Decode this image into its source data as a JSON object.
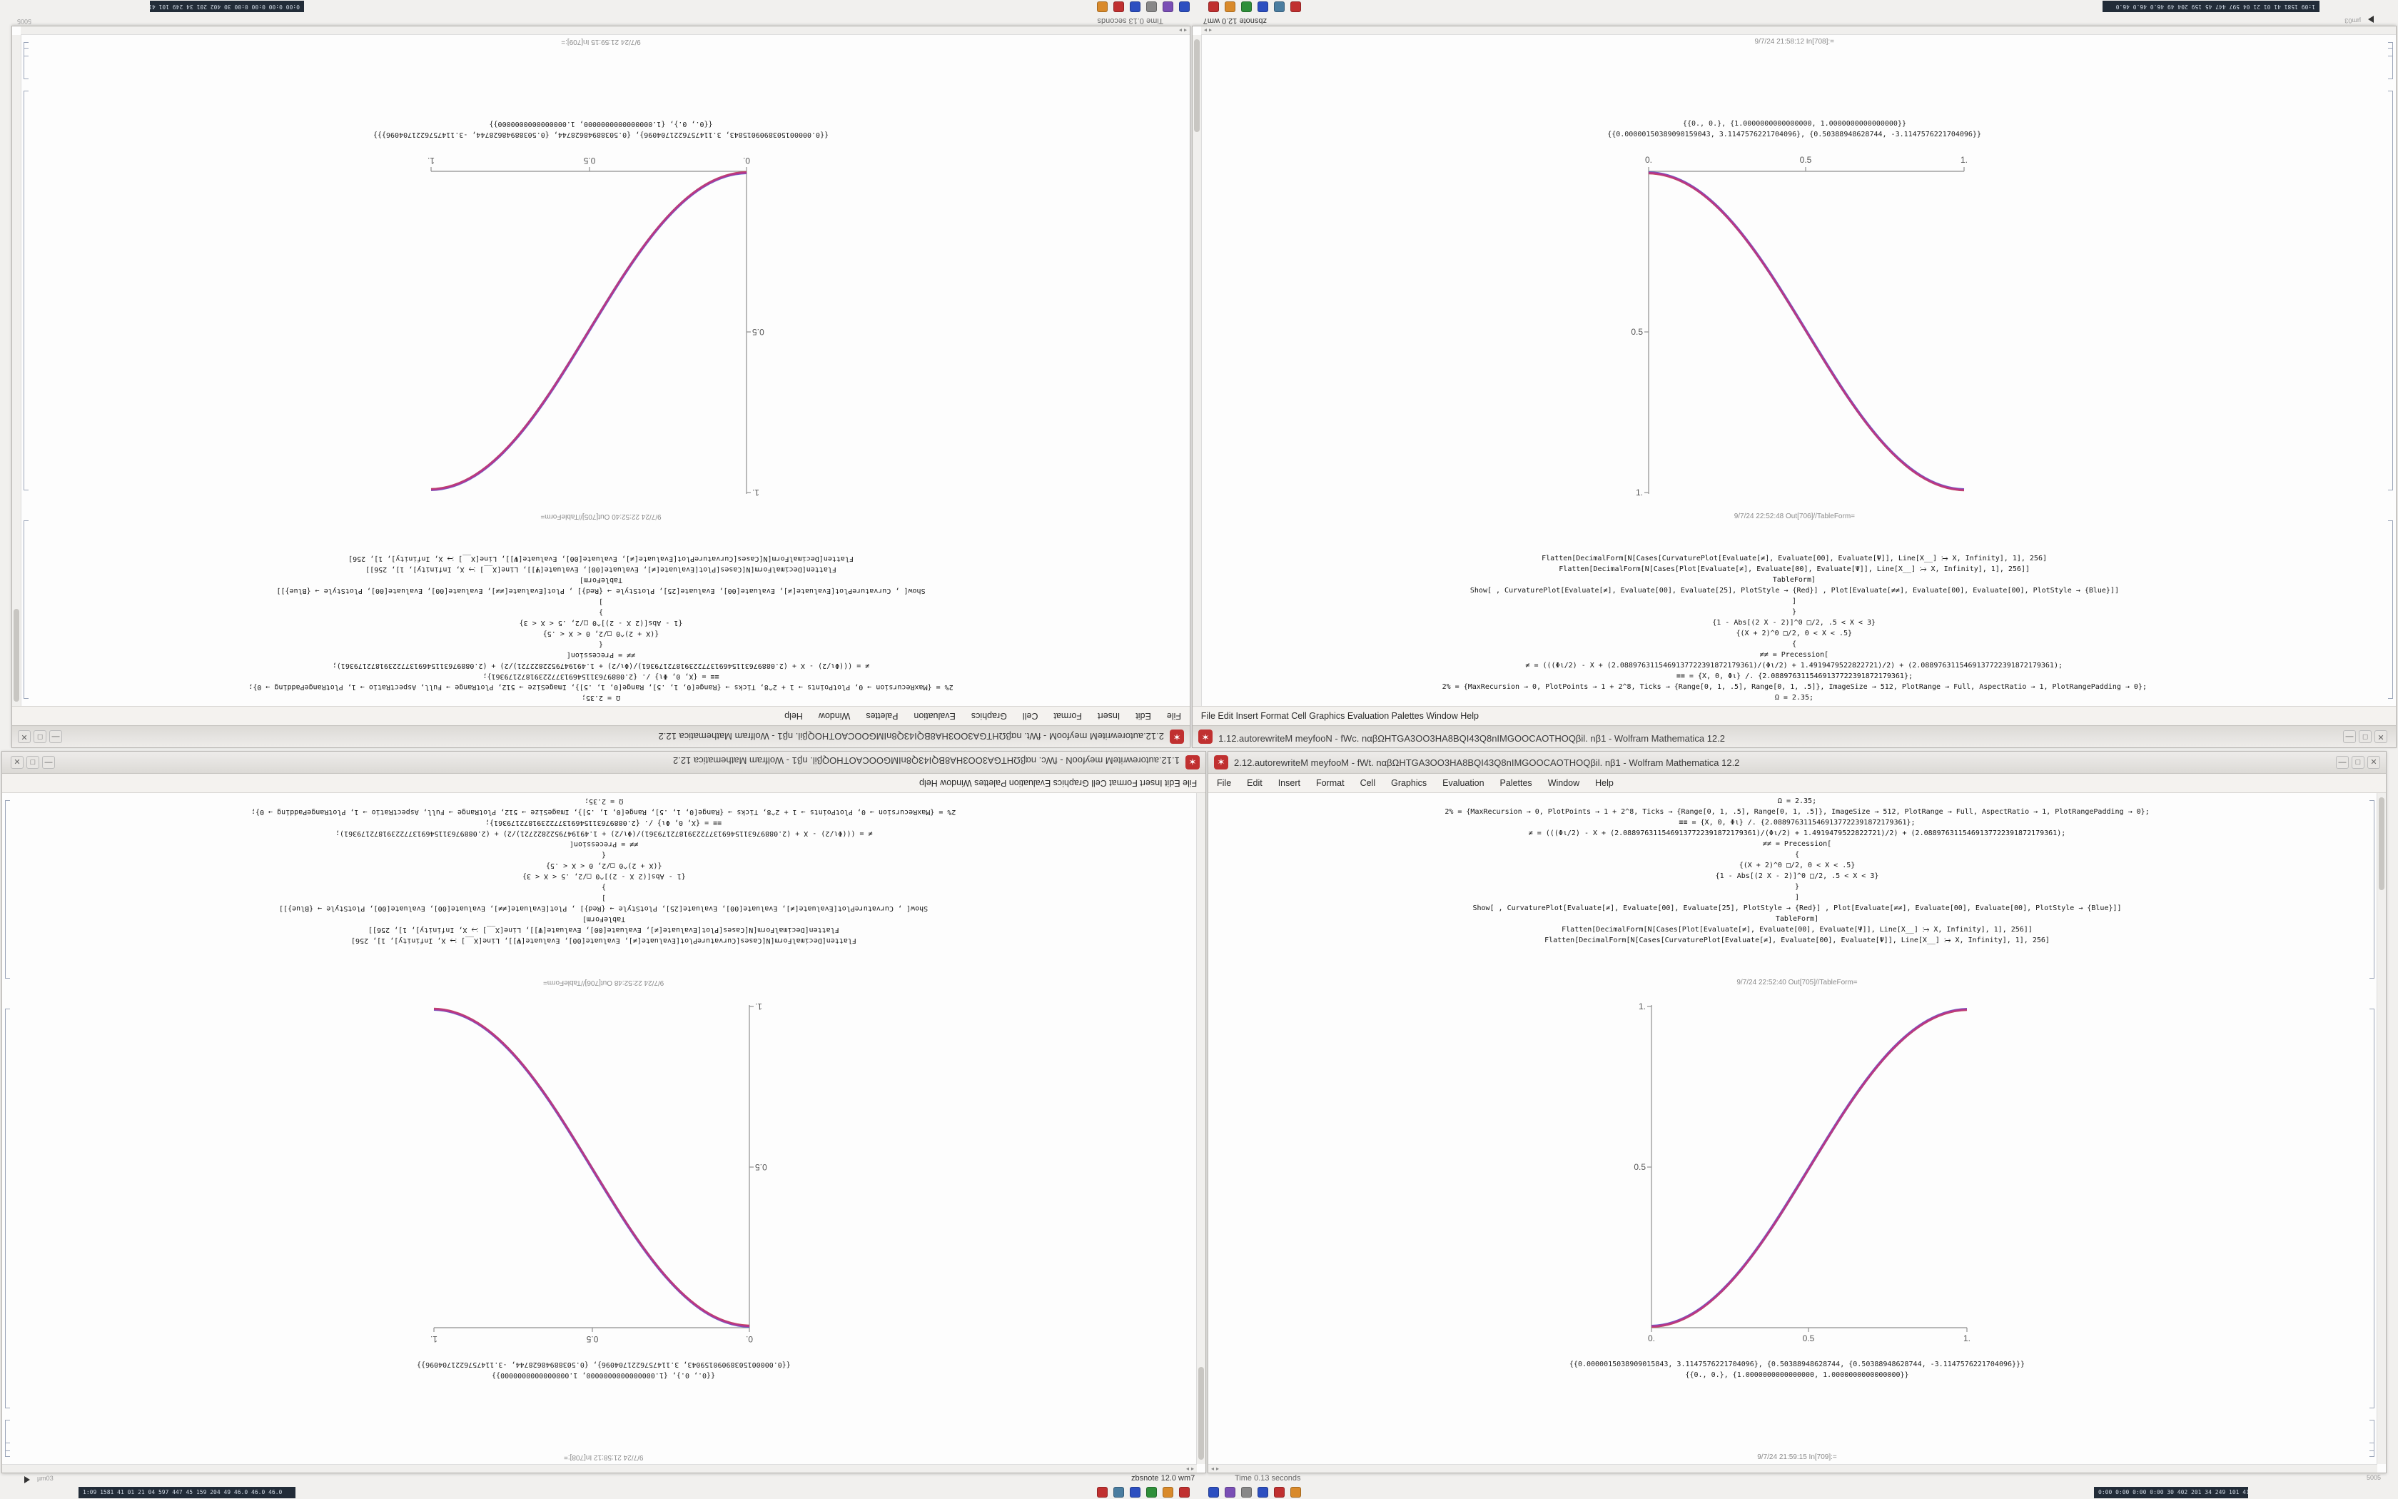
{
  "ui": {
    "accent_red": "#c03030",
    "curve_magenta": "#b5368c",
    "curve_blue": "#4a49c8",
    "curve_red": "#cc4455"
  },
  "status": {
    "left_note": "µm03",
    "app_version_label": "zbsnote 12.0 wm7",
    "time_label": "Time 0.13 seconds",
    "right_corner": "5005"
  },
  "taskbar": {
    "left_strip": "1:09 1581 41 01 21 04 597 447 45 159 204 49 46.0 46.0 46.0",
    "right_strip": "0:00 0:00 0:00 0:00 30 402 201 34 249 101 41 1.1 22 20 28 5463307",
    "icons_left": [
      "#c03030",
      "#4a7da0",
      "#2d4fc0",
      "#2f8f3a",
      "#d98a2b",
      "#c03030"
    ],
    "icons_right": [
      "#2d4fc0",
      "#7a4fb5",
      "#888888",
      "#2d4fc0",
      "#c03030",
      "#d98a2b"
    ]
  },
  "window_right": {
    "title": "2.12.autorewriteM meyfooM - fWt. nαβΩHTGA3OO3HA8BQI43Q8nIMGOOCAOTHOQβil. nβ1 - Wolfram Mathematica 12.2",
    "menus": [
      "File",
      "Edit",
      "Insert",
      "Format",
      "Cell",
      "Graphics",
      "Evaluation",
      "Palettes",
      "Window",
      "Help"
    ],
    "controls": {
      "min": "—",
      "max": "□",
      "close": "✕"
    },
    "cells": [
      "Ω = 2.35;",
      "2% = {MaxRecursion → 0, PlotPoints → 1 + 2^8, Ticks → {Range[0, 1, .5], Range[0, 1, .5]}, ImageSize → 512, PlotRange → Full, AspectRatio → 1, PlotRangePadding → 0};",
      "≡≡ = {X, 0, Φι} /. {2.0889763115469137722391872179361};",
      "≠ = (((Φι/2) - X + (2.0889763115469137722391872179361)/(Φι/2) + 1.4919479522822721)/2) + (2.0889763115469137722391872179361);",
      "≠≠ = Precession[",
      "{",
      "{(X + 2)^0 □/2, 0 < X < .5}",
      "{1 - Abs[(2 X - 2)]^0 □/2, .5 < X < 3}",
      "}",
      "]",
      "Show[ , CurvaturePlot[Evaluate[≠], Evaluate[00], Evaluate[25], PlotStyle → {Red}] , Plot[Evaluate[≠≠], Evaluate[00], Evaluate[00], PlotStyle → {Blue}]]",
      "TableForm]",
      "Flatten[DecimalForm[N[Cases[Plot[Evaluate[≠], Evaluate[00], Evaluate[Ψ]], Line[X__] ⧴ X, Infinity], 1], 256]]",
      "Flatten[DecimalForm[N[Cases[CurvaturePlot[Evaluate[≠], Evaluate[00], Evaluate[Ψ]], Line[X__] ⧴ X, Infinity], 1], 256]"
    ],
    "out_label": "9/7/24 22:52:40 Out[705]//TableForm=",
    "out_rows": [
      "{{0.0000015038909015843, 3.1147576221704096}, {0.50388948628744, {0.50388948628744, -3.1147576221704096}}}",
      "{{0., 0.}, {1.0000000000000000, 1.0000000000000000}}"
    ],
    "in_label": "9/7/24 21:59:15 In[709]:=",
    "plot": {
      "type": "line",
      "direction": "ascending",
      "x_ticks": [
        "0.",
        "0.5",
        "1."
      ],
      "y_ticks": [
        "0.5",
        "1."
      ],
      "x_range": [
        0,
        1
      ],
      "y_range": [
        0,
        1
      ],
      "series": [
        "CurvaturePlot (Red)",
        "Plot (Blue)"
      ]
    }
  },
  "window_left": {
    "title": "1.12.autorewriteM meyfooN - fWc. nαβΩHTGA3OO3HA8BQI43Q8nIMGOOCAOTHOQβil. nβ1 - Wolfram Mathematica 12.2",
    "menus": [
      "File",
      "Edit",
      "Insert",
      "Format",
      "Cell",
      "Graphics",
      "Evaluation",
      "Palettes",
      "Window",
      "Help"
    ],
    "controls": {
      "min": "—",
      "max": "□",
      "close": "✕"
    },
    "cells": [
      "Ω = 2.35;",
      "2% = {MaxRecursion → 0, PlotPoints → 1 + 2^8, Ticks → {Range[0, 1, .5], Range[0, 1, .5]}, ImageSize → 512, PlotRange → Full, AspectRatio → 1, PlotRangePadding → 0};",
      "≡≡ = {X, 0, Φι} /. {2.0889763115469137722391872179361};",
      "≠ = (((Φι/2) - X + (2.0889763115469137722391872179361)/(Φι/2) + 1.4919479522822721)/2) + (2.0889763115469137722391872179361);",
      "≠≠ = Precession[",
      "{",
      "{(X + 2)^0 □/2, 0 < X < .5}",
      "{1 - Abs[(2 X - 2)]^0 □/2, .5 < X < 3}",
      "}",
      "]",
      "Show[ , CurvaturePlot[Evaluate[≠], Evaluate[00], Evaluate[25], PlotStyle → {Red}] , Plot[Evaluate[≠≠], Evaluate[00], Evaluate[00], PlotStyle → {Blue}]]",
      "TableForm]",
      "Flatten[DecimalForm[N[Cases[Plot[Evaluate[≠], Evaluate[00], Evaluate[Ψ]], Line[X__] ⧴ X, Infinity], 1], 256]]",
      "Flatten[DecimalForm[N[Cases[CurvaturePlot[Evaluate[≠], Evaluate[00], Evaluate[Ψ]], Line[X__] ⧴ X, Infinity], 1], 256]"
    ],
    "out_label": "9/7/24 22:52:48 Out[706]//TableForm=",
    "out_rows": [
      "{{0.00000150389090159043, 3.1147576221704096}, {0.50388948628744, -3.1147576221704096}}",
      "{{0., 0.}, {1.0000000000000000, 1.0000000000000000}}"
    ],
    "in_label": "9/7/24 21:58:12 In[708]:=",
    "plot": {
      "type": "line",
      "direction": "descending",
      "x_ticks": [
        "0.",
        "0.5",
        "1."
      ],
      "y_ticks": [
        "0.5",
        "1."
      ],
      "x_range": [
        0,
        1
      ],
      "y_range": [
        0,
        1
      ],
      "series": [
        "CurvaturePlot (Red)",
        "Plot (Blue)"
      ]
    }
  }
}
